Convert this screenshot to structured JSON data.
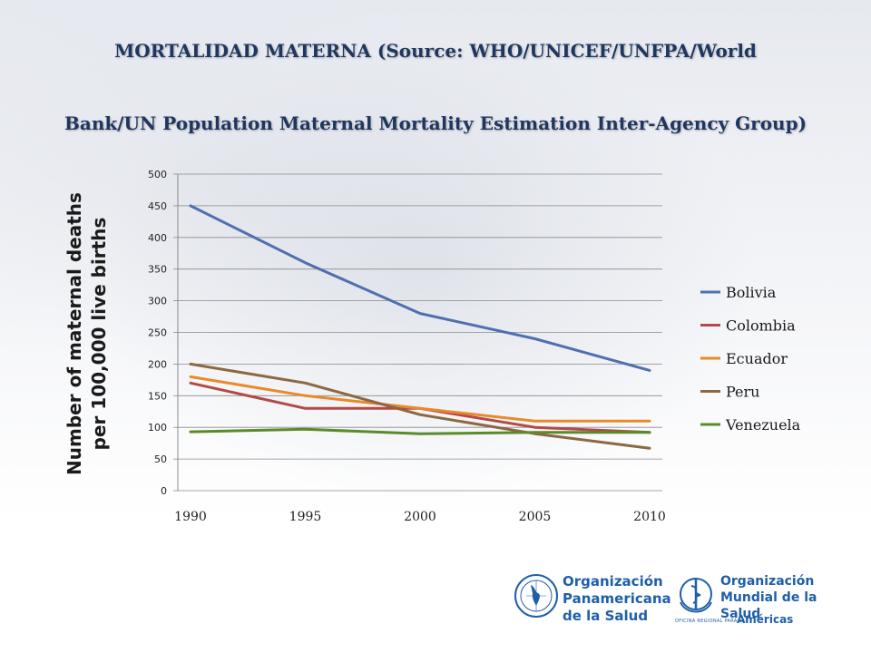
{
  "header": {
    "title_line1": "MORTALIDAD MATERNA (Source: WHO/UNICEF/UNFPA/World",
    "title_line2": "Bank/UN Population Maternal Mortality Estimation Inter-Agency Group)"
  },
  "chart_data": {
    "type": "line",
    "ylabel_line1": "Number of maternal deaths",
    "ylabel_line2": "per 100,000 live births",
    "xlabel": "",
    "x": [
      1990,
      1995,
      2000,
      2005,
      2010
    ],
    "ylim": [
      0,
      500
    ],
    "yticks": [
      0,
      50,
      100,
      150,
      200,
      250,
      300,
      350,
      400,
      450,
      500
    ],
    "xticks": [
      1990,
      1995,
      2000,
      2005,
      2010
    ],
    "grid": "horizontal",
    "legend_position": "right",
    "series": [
      {
        "name": "Bolivia",
        "color": "#4f6fb0",
        "values": [
          450,
          360,
          280,
          240,
          190
        ]
      },
      {
        "name": "Colombia",
        "color": "#b24a48",
        "values": [
          170,
          130,
          130,
          100,
          92
        ]
      },
      {
        "name": "Ecuador",
        "color": "#e9892a",
        "values": [
          180,
          150,
          130,
          110,
          110
        ]
      },
      {
        "name": "Peru",
        "color": "#8c6741",
        "values": [
          200,
          170,
          120,
          90,
          67
        ]
      },
      {
        "name": "Venezuela",
        "color": "#5a8a2a",
        "values": [
          93,
          97,
          90,
          92,
          92
        ]
      }
    ]
  },
  "logos": {
    "paho_line1": "Organización",
    "paho_line2": "Panamericana",
    "paho_line3": "de la Salud",
    "who_line1": "Organización",
    "who_line2": "Mundial de la Salud",
    "who_small": "OFICINA REGIONAL PARA LAS",
    "who_americas": "Américas",
    "paho_icon": "paho-globe-emblem",
    "who_icon": "who-emblem",
    "brand_color": "#1f5fa8"
  }
}
